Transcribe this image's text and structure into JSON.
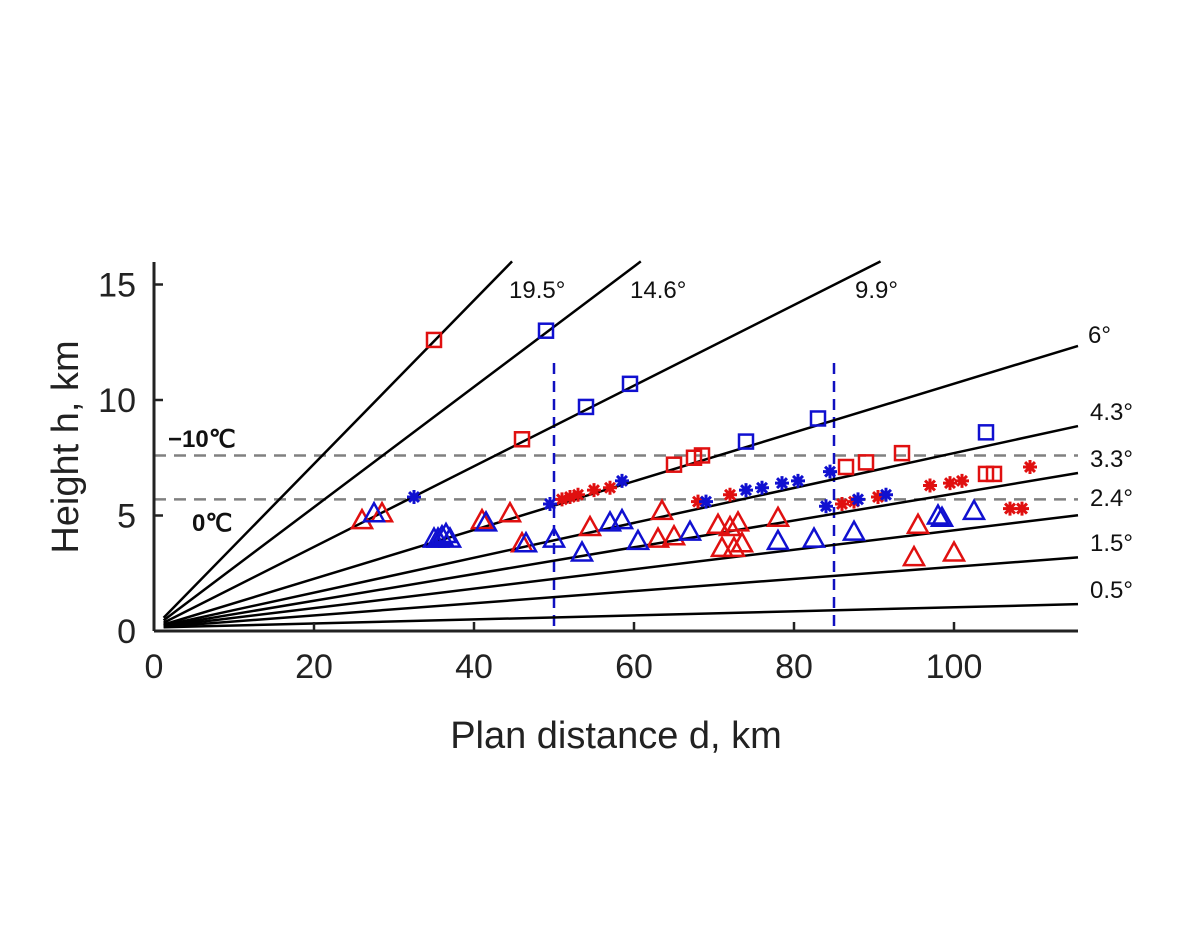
{
  "chart_data": {
    "type": "scatter",
    "xlabel": "Plan distance d, km",
    "ylabel": "Height h, km",
    "xlim": [
      0,
      116
    ],
    "ylim": [
      0,
      16
    ],
    "xticks": [
      "0",
      "20",
      "40",
      "60",
      "80",
      "100"
    ],
    "yticks": [
      "0",
      "5",
      "10",
      "15"
    ],
    "grid": false,
    "colors": {
      "red": "#e01010",
      "blue": "#1010d0",
      "beam": "#000000",
      "isotherm": "#808080",
      "range": "#1010c0"
    },
    "elevation_beams": [
      {
        "label": "19.5°",
        "angle_deg": 19.5
      },
      {
        "label": "14.6°",
        "angle_deg": 14.6
      },
      {
        "label": "9.9°",
        "angle_deg": 9.9
      },
      {
        "label": "6°",
        "angle_deg": 6
      },
      {
        "label": "4.3°",
        "angle_deg": 4.3
      },
      {
        "label": "3.3°",
        "angle_deg": 3.3
      },
      {
        "label": "2.4°",
        "angle_deg": 2.4
      },
      {
        "label": "1.5°",
        "angle_deg": 1.5
      },
      {
        "label": "0.5°",
        "angle_deg": 0.5
      }
    ],
    "isotherms": [
      {
        "label": "−10℃",
        "height": 7.6
      },
      {
        "label": "0℃",
        "height": 5.7
      }
    ],
    "range_lines_km": [
      50,
      85
    ],
    "series": [
      {
        "marker": "square",
        "color": "red",
        "points": [
          [
            35,
            12.6
          ],
          [
            46,
            8.3
          ],
          [
            65,
            7.2
          ],
          [
            67.5,
            7.5
          ],
          [
            68.5,
            7.6
          ],
          [
            86.5,
            7.1
          ],
          [
            89,
            7.3
          ],
          [
            93.5,
            7.7
          ],
          [
            104,
            6.8
          ],
          [
            105,
            6.8
          ]
        ]
      },
      {
        "marker": "square",
        "color": "blue",
        "points": [
          [
            49,
            13.0
          ],
          [
            54,
            9.7
          ],
          [
            59.5,
            10.7
          ],
          [
            74,
            8.2
          ],
          [
            83,
            9.2
          ],
          [
            104,
            8.6
          ]
        ]
      },
      {
        "marker": "asterisk",
        "color": "red",
        "points": [
          [
            51,
            5.7
          ],
          [
            52,
            5.8
          ],
          [
            53,
            5.9
          ],
          [
            55,
            6.1
          ],
          [
            57,
            6.2
          ],
          [
            68,
            5.6
          ],
          [
            72,
            5.9
          ],
          [
            86,
            5.5
          ],
          [
            87.5,
            5.6
          ],
          [
            90.5,
            5.8
          ],
          [
            97,
            6.3
          ],
          [
            99.5,
            6.4
          ],
          [
            101,
            6.5
          ],
          [
            107,
            5.3
          ],
          [
            108.5,
            5.3
          ],
          [
            109.5,
            7.1
          ]
        ]
      },
      {
        "marker": "asterisk",
        "color": "blue",
        "points": [
          [
            32.5,
            5.8
          ],
          [
            49.5,
            5.5
          ],
          [
            58.5,
            6.5
          ],
          [
            69,
            5.6
          ],
          [
            74,
            6.1
          ],
          [
            76,
            6.2
          ],
          [
            78.5,
            6.4
          ],
          [
            80.5,
            6.5
          ],
          [
            84.5,
            6.9
          ],
          [
            84,
            5.4
          ],
          [
            88,
            5.7
          ],
          [
            91.5,
            5.9
          ]
        ]
      },
      {
        "marker": "triangle",
        "color": "red",
        "points": [
          [
            26,
            4.8
          ],
          [
            28.5,
            5.1
          ],
          [
            41,
            4.8
          ],
          [
            44.5,
            5.1
          ],
          [
            46,
            3.8
          ],
          [
            54.5,
            4.5
          ],
          [
            63,
            4.0
          ],
          [
            63.5,
            5.2
          ],
          [
            65,
            4.1
          ],
          [
            70.5,
            4.6
          ],
          [
            71,
            3.6
          ],
          [
            72,
            4.5
          ],
          [
            72.5,
            3.6
          ],
          [
            73,
            4.7
          ],
          [
            73.5,
            3.8
          ],
          [
            78,
            4.9
          ],
          [
            95,
            3.2
          ],
          [
            95.5,
            4.6
          ],
          [
            100,
            3.4
          ]
        ]
      },
      {
        "marker": "triangle",
        "color": "blue",
        "points": [
          [
            27.5,
            5.1
          ],
          [
            35,
            4.0
          ],
          [
            35.5,
            4.0
          ],
          [
            36,
            4.1
          ],
          [
            36.5,
            4.2
          ],
          [
            37,
            4.0
          ],
          [
            41.5,
            4.7
          ],
          [
            46.5,
            3.8
          ],
          [
            50,
            4.0
          ],
          [
            53.5,
            3.4
          ],
          [
            57,
            4.7
          ],
          [
            58.5,
            4.8
          ],
          [
            60.5,
            3.9
          ],
          [
            67,
            4.3
          ],
          [
            78,
            3.9
          ],
          [
            82.5,
            4.0
          ],
          [
            87.5,
            4.3
          ],
          [
            98,
            5.0
          ],
          [
            98.5,
            4.9
          ],
          [
            102.5,
            5.2
          ]
        ]
      }
    ]
  }
}
